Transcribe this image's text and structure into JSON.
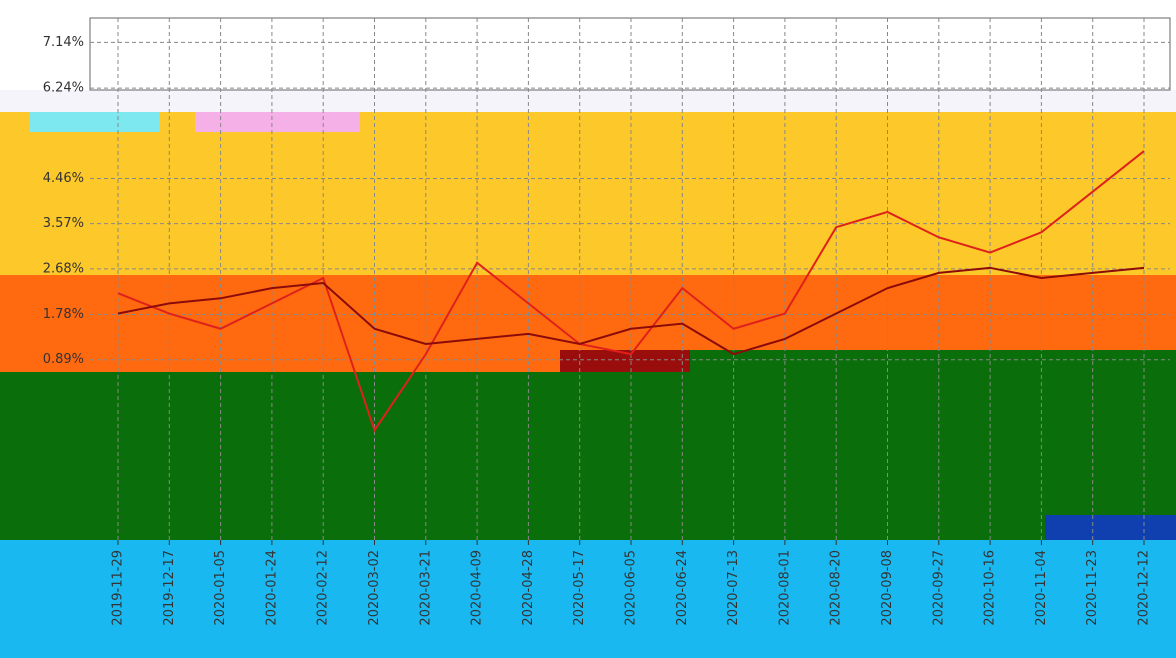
{
  "chart_data": {
    "type": "line",
    "categories": [
      "2019-11-29",
      "2019-12-17",
      "2020-01-05",
      "2020-01-24",
      "2020-02-12",
      "2020-03-02",
      "2020-03-21",
      "2020-04-09",
      "2020-04-28",
      "2020-05-17",
      "2020-06-05",
      "2020-06-24",
      "2020-07-13",
      "2020-08-01",
      "2020-08-20",
      "2020-09-08",
      "2020-09-27",
      "2020-10-16",
      "2020-11-04",
      "2020-11-23",
      "2020-12-12"
    ],
    "series": [
      {
        "color": "#e0201a",
        "values": [
          2.2,
          1.8,
          1.5,
          2.0,
          2.5,
          -0.5,
          1.0,
          2.8,
          2.0,
          1.2,
          1.0,
          2.3,
          1.5,
          1.8,
          3.5,
          3.8,
          3.3,
          3.0,
          3.4,
          4.2,
          5.0
        ]
      },
      {
        "color": "#8b0a0a",
        "values": [
          1.8,
          2.0,
          2.1,
          2.3,
          2.4,
          1.5,
          1.2,
          1.3,
          1.4,
          1.2,
          1.5,
          1.6,
          1.0,
          1.3,
          1.8,
          2.3,
          2.6,
          2.7,
          2.5,
          2.6,
          2.7
        ]
      }
    ],
    "ylim": [
      -2.66,
      7.62
    ],
    "yticks": [
      {
        "value": 0.89,
        "label": "0.89%"
      },
      {
        "value": 1.78,
        "label": "1.78%"
      },
      {
        "value": 2.68,
        "label": "2.68%"
      },
      {
        "value": 3.57,
        "label": "3.57%"
      },
      {
        "value": 4.46,
        "label": "4.46%"
      },
      {
        "value": 6.24,
        "label": "6.24%"
      },
      {
        "value": 7.14,
        "label": "7.14%"
      }
    ],
    "grid": true
  }
}
